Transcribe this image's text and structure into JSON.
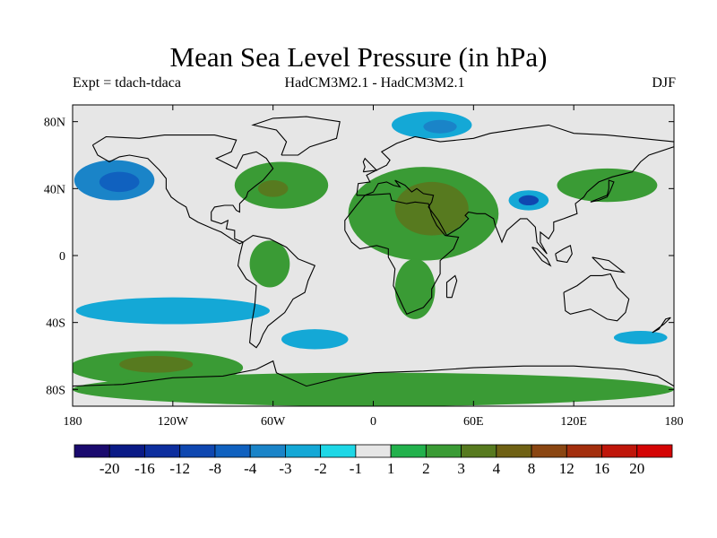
{
  "title": "Mean Sea Level Pressure (in hPa)",
  "experiment": "Expt = tdach-tdaca",
  "model": "HadCM3M2.1 - HadCM3M2.1",
  "season": "DJF",
  "map": {
    "projection": "cylindrical-equidistant",
    "lon_range": [
      -180,
      180
    ],
    "lat_range": [
      -90,
      90
    ],
    "background_color": "#e6e6e6",
    "coastline_color": "#000000",
    "lat_ticks": [
      80,
      40,
      0,
      -40,
      -80
    ],
    "lat_tick_labels": [
      "80N",
      "40N",
      "0",
      "40S",
      "80S"
    ],
    "lon_ticks": [
      -180,
      -120,
      -60,
      0,
      60,
      120,
      180
    ],
    "lon_tick_labels": [
      "180",
      "120W",
      "60W",
      "0",
      "60E",
      "120E",
      "180"
    ]
  },
  "colorbar": {
    "placement": "bottom",
    "colors": [
      "#1a0a6e",
      "#0a1a86",
      "#0d2e9e",
      "#0f47b0",
      "#1061bf",
      "#1a84c8",
      "#14a8d6",
      "#1ed7e6",
      "#e6e6e6",
      "#22b14c",
      "#3a9b35",
      "#577a1f",
      "#6f6114",
      "#8a4612",
      "#a32e0d",
      "#bf160a",
      "#d40404"
    ],
    "labels": [
      "-20",
      "-16",
      "-12",
      "-8",
      "-4",
      "-3",
      "-2",
      "-1",
      "1",
      "2",
      "3",
      "4",
      "8",
      "12",
      "16",
      "20"
    ]
  },
  "anomaly_regions": [
    {
      "name": "north-pacific-low",
      "level": -3,
      "lon": -155,
      "lat": 45,
      "rx": 24,
      "ry": 12
    },
    {
      "name": "north-pacific-low-core",
      "level": -4,
      "lon": -152,
      "lat": 44,
      "rx": 12,
      "ry": 6
    },
    {
      "name": "arctic-siberia-low",
      "level": -2,
      "lon": 35,
      "lat": 78,
      "rx": 24,
      "ry": 8
    },
    {
      "name": "arctic-siberia-low-core",
      "level": -3,
      "lon": 40,
      "lat": 77,
      "rx": 10,
      "ry": 4
    },
    {
      "name": "tibetan-low",
      "level": -2,
      "lon": 93,
      "lat": 33,
      "rx": 12,
      "ry": 6
    },
    {
      "name": "tibetan-low-core",
      "level": -8,
      "lon": 93,
      "lat": 33,
      "rx": 6,
      "ry": 3
    },
    {
      "name": "south-pacific-low",
      "level": -2,
      "lon": -120,
      "lat": -33,
      "rx": 58,
      "ry": 8
    },
    {
      "name": "south-atlantic-low",
      "level": -2,
      "lon": -35,
      "lat": -50,
      "rx": 20,
      "ry": 6
    },
    {
      "name": "tasman-low",
      "level": -2,
      "lon": 160,
      "lat": -49,
      "rx": 16,
      "ry": 4
    },
    {
      "name": "north-atlantic-high",
      "level": 2,
      "lon": -55,
      "lat": 42,
      "rx": 28,
      "ry": 14
    },
    {
      "name": "north-atlantic-high-core",
      "level": 3,
      "lon": -60,
      "lat": 40,
      "rx": 9,
      "ry": 5
    },
    {
      "name": "africa-eurasia-high",
      "level": 2,
      "lon": 30,
      "lat": 25,
      "rx": 45,
      "ry": 28
    },
    {
      "name": "sahara-arabia-high-core",
      "level": 3,
      "lon": 35,
      "lat": 28,
      "rx": 22,
      "ry": 16
    },
    {
      "name": "southern-africa-high",
      "level": 2,
      "lon": 25,
      "lat": -20,
      "rx": 12,
      "ry": 18
    },
    {
      "name": "south-america-high",
      "level": 2,
      "lon": -62,
      "lat": -5,
      "rx": 12,
      "ry": 14
    },
    {
      "name": "east-asia-high",
      "level": 2,
      "lon": 140,
      "lat": 42,
      "rx": 30,
      "ry": 10
    },
    {
      "name": "southern-ocean-high",
      "level": 2,
      "lon": -130,
      "lat": -67,
      "rx": 52,
      "ry": 10
    },
    {
      "name": "southern-ocean-high-core",
      "level": 3,
      "lon": -130,
      "lat": -65,
      "rx": 22,
      "ry": 5
    },
    {
      "name": "antarctic-high",
      "level": 2,
      "lon": 0,
      "lat": -80,
      "rx": 180,
      "ry": 10
    }
  ]
}
